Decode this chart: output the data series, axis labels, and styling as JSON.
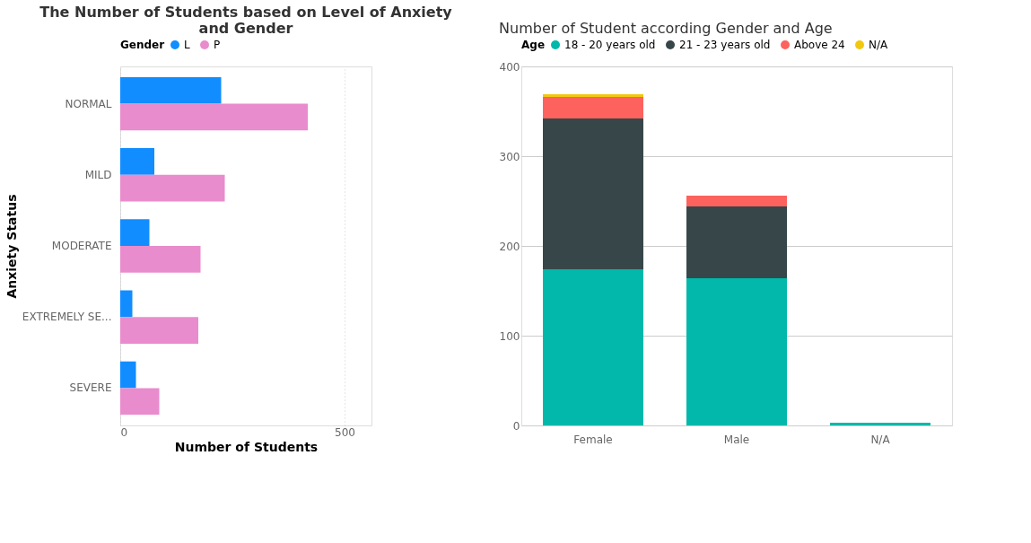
{
  "chart_data": [
    {
      "type": "bar",
      "orientation": "horizontal",
      "title": "The Number of Students based on Level of Anxiety and Gender",
      "xlabel": "Number of Students",
      "ylabel": "Anxiety Status",
      "legend_title": "Gender",
      "legend": "top left",
      "grid": "x",
      "categories": [
        "NORMAL",
        "MILD",
        "MODERATE",
        "EXTREMELY SE...",
        "SEVERE"
      ],
      "xlim": [
        0,
        560
      ],
      "xticks": [
        0,
        500
      ],
      "series": [
        {
          "name": "L",
          "color": "#118dff",
          "values": [
            225,
            76,
            65,
            27,
            35
          ]
        },
        {
          "name": "P",
          "color": "#e98ccd",
          "values": [
            418,
            233,
            179,
            174,
            87
          ]
        }
      ]
    },
    {
      "type": "bar",
      "stacked": true,
      "title": "Number of Student according Gender and Age",
      "legend_title": "Age",
      "legend": "top left",
      "grid": "y",
      "categories": [
        "Female",
        "Male",
        "N/A"
      ],
      "ylim": [
        0,
        400
      ],
      "yticks": [
        0,
        100,
        200,
        300,
        400
      ],
      "series": [
        {
          "name": "18 - 20 years old",
          "color": "#01b8aa",
          "values": [
            174,
            164,
            3
          ]
        },
        {
          "name": "21 - 23 years old",
          "color": "#374649",
          "values": [
            168,
            80,
            0
          ]
        },
        {
          "name": "Above 24",
          "color": "#fd625e",
          "values": [
            24,
            12,
            0
          ]
        },
        {
          "name": "N/A",
          "color": "#f2c80f",
          "values": [
            3,
            0,
            0
          ]
        }
      ]
    }
  ]
}
